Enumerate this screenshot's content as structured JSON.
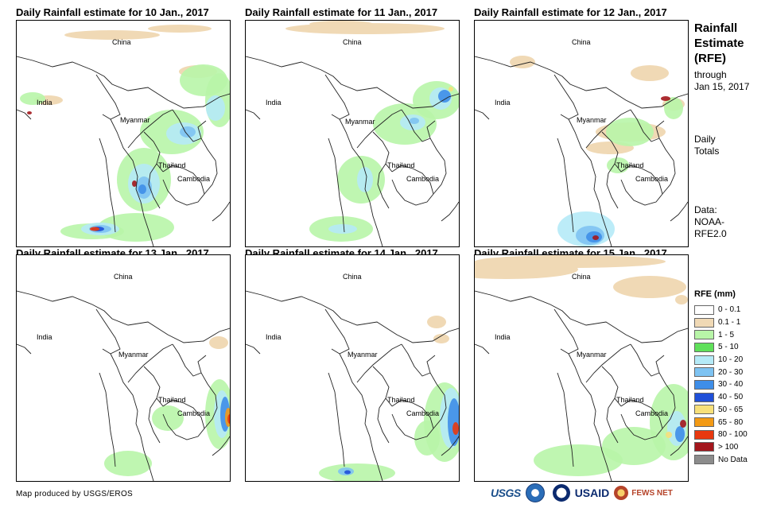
{
  "panels": [
    {
      "title": "Daily Rainfall estimate for 10 Jan., 2017"
    },
    {
      "title": "Daily Rainfall estimate for 11 Jan., 2017"
    },
    {
      "title": "Daily Rainfall estimate for 12 Jan., 2017"
    },
    {
      "title": "Daily Rainfall estimate for 13 Jan., 2017"
    },
    {
      "title": "Daily Rainfall estimate for 14 Jan., 2017"
    },
    {
      "title": "Daily Rainfall estimate for 15 Jan., 2017"
    }
  ],
  "map_labels": {
    "china": "China",
    "india": "India",
    "myanmar": "Myanmar",
    "thailand": "Thailand",
    "cambodia": "Cambodia"
  },
  "sidebar": {
    "title_line1": "Rainfall",
    "title_line2": "Estimate",
    "title_line3": "(RFE)",
    "through_line1": "through",
    "through_line2": "Jan 15, 2017",
    "daily_line1": "Daily",
    "daily_line2": "Totals",
    "data_line1": "Data:",
    "data_line2": "NOAA-",
    "data_line3": "RFE2.0"
  },
  "legend": {
    "title": "RFE (mm)",
    "items": [
      {
        "label": "0 - 0.1",
        "color": "#ffffff"
      },
      {
        "label": "0.1 - 1",
        "color": "#f0d9b5"
      },
      {
        "label": "1 - 5",
        "color": "#b8f5a8"
      },
      {
        "label": "5 - 10",
        "color": "#5fe05a"
      },
      {
        "label": "10 - 20",
        "color": "#b5eaf7"
      },
      {
        "label": "20 - 30",
        "color": "#7ec3f2"
      },
      {
        "label": "30 - 40",
        "color": "#3e8ee8"
      },
      {
        "label": "40 - 50",
        "color": "#1f4fd8"
      },
      {
        "label": "50 - 65",
        "color": "#f7e07a"
      },
      {
        "label": "65 - 80",
        "color": "#f39a15"
      },
      {
        "label": "80 - 100",
        "color": "#e8380f"
      },
      {
        "label": "> 100",
        "color": "#a3161c"
      },
      {
        "label": "No Data",
        "color": "#8c8c8c"
      }
    ]
  },
  "footer": {
    "credit": "Map produced by USGS/EROS",
    "logo_usgs": "USGS",
    "logo_usaid": "USAID",
    "logo_fews": "FEWS NET"
  }
}
